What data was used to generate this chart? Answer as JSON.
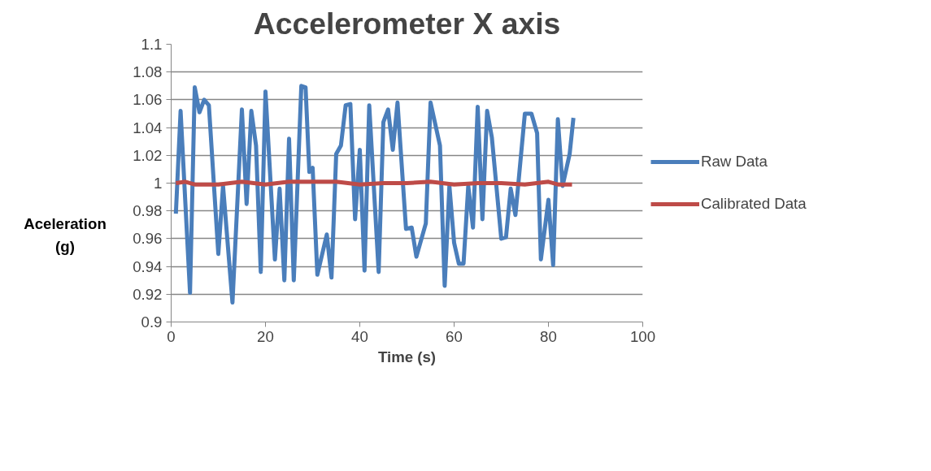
{
  "chart_data": {
    "type": "line",
    "title": "Accelerometer X axis",
    "xlabel": "Time (s)",
    "ylabel": "Aceleration (g)",
    "xlim": [
      0,
      100
    ],
    "xticks": [
      0,
      20,
      40,
      60,
      80,
      100
    ],
    "ylim": [
      0.9,
      1.1
    ],
    "yticks": [
      0.9,
      0.92,
      0.94,
      0.96,
      0.98,
      1,
      1.02,
      1.04,
      1.06,
      1.08,
      1.1
    ],
    "grid": "y",
    "legend": "right",
    "marker": "none",
    "line_style": "solid",
    "series": [
      {
        "name": "Raw Data",
        "color": "#4a7ebb",
        "x": [
          1,
          2,
          4,
          5,
          6,
          7,
          8,
          10,
          11,
          13,
          15,
          16,
          17,
          18,
          19,
          20,
          22,
          23,
          24,
          25,
          26,
          27.6,
          28.5,
          29.3,
          30,
          31,
          33,
          34,
          35,
          36,
          37,
          38,
          39,
          40,
          41,
          42,
          44,
          45,
          46,
          47,
          48,
          49.8,
          51,
          52,
          54,
          55,
          57,
          58,
          59,
          60,
          61,
          62,
          63,
          64,
          65,
          66,
          67,
          68,
          70,
          71,
          72,
          73,
          75,
          76.4,
          77.6,
          78.4,
          80,
          81,
          82,
          83,
          84.5,
          85.3
        ],
        "values": [
          0.978,
          1.052,
          0.921,
          1.069,
          1.051,
          1.06,
          1.056,
          0.949,
          0.998,
          0.914,
          1.053,
          0.985,
          1.052,
          1.027,
          0.936,
          1.066,
          0.945,
          0.996,
          0.93,
          1.032,
          0.93,
          1.07,
          1.069,
          1.008,
          1.011,
          0.934,
          0.963,
          0.932,
          1.021,
          1.027,
          1.056,
          1.057,
          0.974,
          1.024,
          0.937,
          1.056,
          0.936,
          1.044,
          1.053,
          1.024,
          1.058,
          0.967,
          0.968,
          0.947,
          0.971,
          1.058,
          1.027,
          0.926,
          0.998,
          0.957,
          0.942,
          0.942,
          0.998,
          0.968,
          1.055,
          0.974,
          1.052,
          1.033,
          0.96,
          0.961,
          0.996,
          0.977,
          1.05,
          1.05,
          1.036,
          0.945,
          0.988,
          0.941,
          1.046,
          0.998,
          1.021,
          1.047
        ]
      },
      {
        "name": "Calibrated Data",
        "color": "#be4b48",
        "x": [
          1,
          3,
          5,
          10,
          15,
          20,
          25,
          30,
          35,
          40,
          45,
          50,
          55,
          60,
          65,
          70,
          75,
          80,
          82,
          85
        ],
        "values": [
          1.0,
          1.001,
          0.999,
          0.999,
          1.001,
          0.999,
          1.001,
          1.001,
          1.001,
          0.999,
          1.0,
          1.0,
          1.001,
          0.999,
          1.0,
          1.0,
          0.999,
          1.001,
          0.999,
          0.999
        ]
      }
    ]
  }
}
